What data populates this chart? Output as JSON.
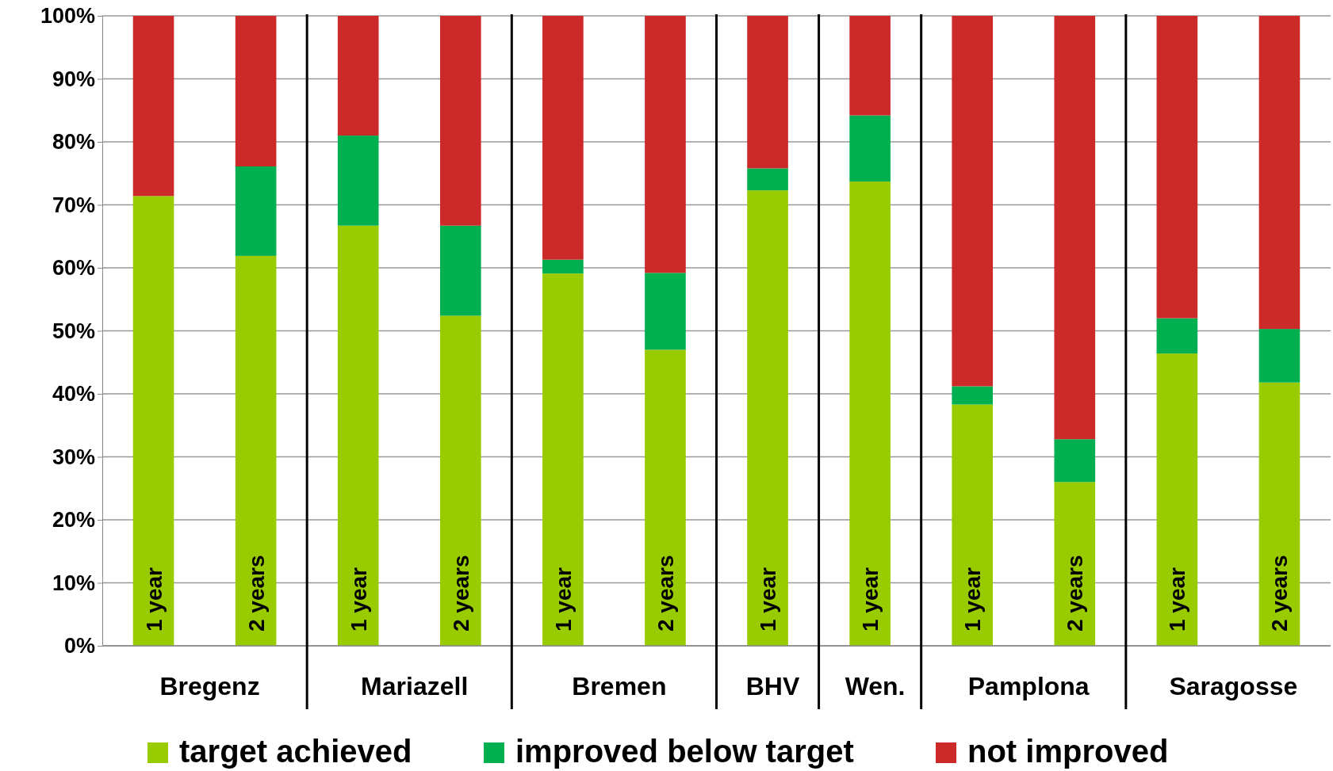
{
  "chart_data": {
    "type": "bar",
    "stacked": true,
    "categories": [
      "1 year",
      "2 years",
      "1 year",
      "2 years",
      "1 year",
      "2 years",
      "1 year",
      "1 year",
      "1 year",
      "2 years",
      "1 year",
      "2 years"
    ],
    "series": [
      {
        "name": "target achieved",
        "color": "#99cc00",
        "values": [
          71.4,
          61.9,
          66.7,
          52.4,
          59.1,
          47.0,
          72.3,
          73.7,
          38.3,
          26.0,
          46.4,
          41.8
        ]
      },
      {
        "name": "improved below target",
        "color": "#00b050",
        "values": [
          0,
          14.2,
          14.3,
          14.3,
          2.2,
          12.2,
          3.5,
          10.5,
          2.9,
          6.8,
          5.6,
          8.5
        ]
      },
      {
        "name": "not improved",
        "color": "#cc2929",
        "values": [
          28.6,
          23.9,
          19.0,
          33.3,
          38.7,
          40.8,
          24.2,
          15.8,
          58.8,
          67.2,
          48.0,
          49.7
        ]
      }
    ],
    "annotations": [
      "Bregenz",
      "Mariazell",
      "Bremen",
      "BHV",
      "Wen.",
      "Pamplona",
      "Saragosse"
    ],
    "ylim": [
      0,
      100
    ],
    "yticks": [
      {
        "value": 0,
        "label": "0%"
      },
      {
        "value": 10,
        "label": "10%"
      },
      {
        "value": 20,
        "label": "20%"
      },
      {
        "value": 30,
        "label": "30%"
      },
      {
        "value": 40,
        "label": "40%"
      },
      {
        "value": 50,
        "label": "50%"
      },
      {
        "value": 60,
        "label": "60%"
      },
      {
        "value": 70,
        "label": "70%"
      },
      {
        "value": 80,
        "label": "80%"
      },
      {
        "value": 90,
        "label": "90%"
      },
      {
        "value": 100,
        "label": "100%"
      }
    ],
    "grid": "y",
    "legend": "bottom"
  }
}
